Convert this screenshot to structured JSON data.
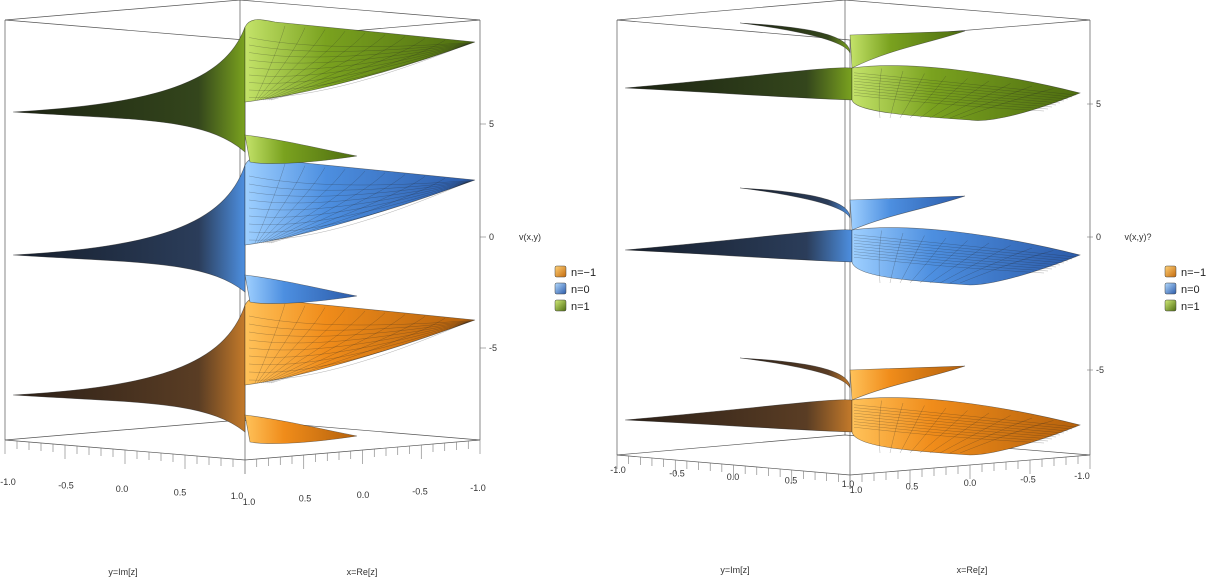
{
  "chart_data": [
    {
      "type": "surface3d",
      "title": "",
      "zlabel": "v(x,y)",
      "xlabel": "x=Re[z]",
      "ylabel": "y=Im[z]",
      "x_ticks": [
        "1.0",
        "0.5",
        "0.0",
        "-0.5",
        "-1.0"
      ],
      "y_ticks": [
        "-1.0",
        "-0.5",
        "0.0",
        "0.5",
        "1.0"
      ],
      "z_ticks": [
        "5",
        "0",
        "-5"
      ],
      "xlim": [
        -1,
        1
      ],
      "ylim": [
        -1,
        1
      ],
      "legend_position": "right",
      "series": [
        {
          "name": "n=−1",
          "color": "#f08c1a",
          "dark": "#3a2a1e"
        },
        {
          "name": "n=0",
          "color": "#4d8fe0",
          "dark": "#1e2a3a"
        },
        {
          "name": "n=1",
          "color": "#7aa21f",
          "dark": "#253018"
        }
      ]
    },
    {
      "type": "surface3d",
      "title": "",
      "zlabel": "v(x,y)?",
      "xlabel": "x=Re[z]",
      "ylabel": "y=Im[z]",
      "x_ticks": [
        "1.0",
        "0.5",
        "0.0",
        "-0.5",
        "-1.0"
      ],
      "y_ticks": [
        "-1.0",
        "-0.5",
        "0.0",
        "0.5",
        "1.0"
      ],
      "z_ticks": [
        "5",
        "0",
        "-5"
      ],
      "xlim": [
        -1,
        1
      ],
      "ylim": [
        -1,
        1
      ],
      "legend_position": "right",
      "series": [
        {
          "name": "n=−1",
          "color": "#f08c1a",
          "dark": "#3a2a1e"
        },
        {
          "name": "n=0",
          "color": "#4d8fe0",
          "dark": "#1e2a3a"
        },
        {
          "name": "n=1",
          "color": "#7aa21f",
          "dark": "#253018"
        }
      ]
    }
  ]
}
